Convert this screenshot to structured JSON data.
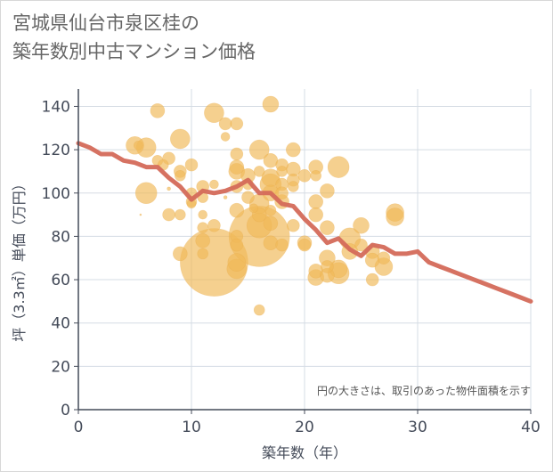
{
  "title_lines": [
    "宮城県仙台市泉区桂の",
    "築年数別中古マンション価格"
  ],
  "chart_data": {
    "type": "scatter",
    "xlabel": "築年数（年）",
    "ylabel": "坪（3.3㎡）単価（万円）",
    "xlim": [
      0,
      40
    ],
    "ylim": [
      0,
      148
    ],
    "xticks": [
      0,
      10,
      20,
      30,
      40
    ],
    "yticks": [
      0,
      20,
      40,
      60,
      80,
      100,
      120,
      140
    ],
    "grid": true,
    "note": "円の大きさは、取引のあった物件面積を示す",
    "colors": {
      "bubble": "#f0b95a",
      "line": "#d46a5a",
      "grid": "#d5dce4",
      "axis": "#444b59"
    },
    "bubbles": [
      {
        "x": 5,
        "y": 122,
        "s": 10
      },
      {
        "x": 5.3,
        "y": 122,
        "s": 5
      },
      {
        "x": 5.5,
        "y": 90,
        "s": 1
      },
      {
        "x": 6,
        "y": 121,
        "s": 11
      },
      {
        "x": 6,
        "y": 100,
        "s": 12
      },
      {
        "x": 7,
        "y": 138,
        "s": 8
      },
      {
        "x": 7,
        "y": 115,
        "s": 6
      },
      {
        "x": 7.5,
        "y": 113,
        "s": 6
      },
      {
        "x": 8,
        "y": 116,
        "s": 7
      },
      {
        "x": 8,
        "y": 90,
        "s": 7
      },
      {
        "x": 8,
        "y": 102,
        "s": 2
      },
      {
        "x": 9,
        "y": 125,
        "s": 11
      },
      {
        "x": 9,
        "y": 110,
        "s": 7
      },
      {
        "x": 9,
        "y": 108,
        "s": 6
      },
      {
        "x": 9,
        "y": 90,
        "s": 6
      },
      {
        "x": 9,
        "y": 72,
        "s": 8
      },
      {
        "x": 10,
        "y": 113,
        "s": 7
      },
      {
        "x": 10,
        "y": 100,
        "s": 6
      },
      {
        "x": 10,
        "y": 95,
        "s": 5
      },
      {
        "x": 10,
        "y": 96,
        "s": 6
      },
      {
        "x": 11,
        "y": 103,
        "s": 7
      },
      {
        "x": 11,
        "y": 98,
        "s": 6
      },
      {
        "x": 11,
        "y": 90,
        "s": 5
      },
      {
        "x": 11,
        "y": 84,
        "s": 6
      },
      {
        "x": 11,
        "y": 78,
        "s": 8
      },
      {
        "x": 11,
        "y": 72,
        "s": 6
      },
      {
        "x": 12,
        "y": 137,
        "s": 11
      },
      {
        "x": 12,
        "y": 104,
        "s": 5
      },
      {
        "x": 12,
        "y": 85,
        "s": 7
      },
      {
        "x": 12,
        "y": 68,
        "s": 38
      },
      {
        "x": 13,
        "y": 132,
        "s": 7
      },
      {
        "x": 13,
        "y": 126,
        "s": 5
      },
      {
        "x": 13,
        "y": 98,
        "s": 2
      },
      {
        "x": 14,
        "y": 132,
        "s": 7
      },
      {
        "x": 14,
        "y": 118,
        "s": 7
      },
      {
        "x": 14,
        "y": 112,
        "s": 8
      },
      {
        "x": 14,
        "y": 110,
        "s": 9
      },
      {
        "x": 14,
        "y": 103,
        "s": 7
      },
      {
        "x": 14,
        "y": 92,
        "s": 8
      },
      {
        "x": 14,
        "y": 80,
        "s": 7
      },
      {
        "x": 14,
        "y": 76,
        "s": 7
      },
      {
        "x": 14,
        "y": 68,
        "s": 10
      },
      {
        "x": 14,
        "y": 65,
        "s": 11
      },
      {
        "x": 15,
        "y": 108,
        "s": 8
      },
      {
        "x": 15,
        "y": 104,
        "s": 6
      },
      {
        "x": 15,
        "y": 98,
        "s": 7
      },
      {
        "x": 15.5,
        "y": 93,
        "s": 5
      },
      {
        "x": 16,
        "y": 120,
        "s": 11
      },
      {
        "x": 16,
        "y": 110,
        "s": 6
      },
      {
        "x": 16,
        "y": 95,
        "s": 11
      },
      {
        "x": 16,
        "y": 90,
        "s": 8
      },
      {
        "x": 16,
        "y": 85,
        "s": 14
      },
      {
        "x": 16,
        "y": 80,
        "s": 34
      },
      {
        "x": 16,
        "y": 46,
        "s": 6
      },
      {
        "x": 17,
        "y": 141,
        "s": 9
      },
      {
        "x": 17,
        "y": 115,
        "s": 8
      },
      {
        "x": 17,
        "y": 107,
        "s": 10
      },
      {
        "x": 17,
        "y": 104,
        "s": 12
      },
      {
        "x": 17,
        "y": 100,
        "s": 9
      },
      {
        "x": 17,
        "y": 92,
        "s": 6
      },
      {
        "x": 17,
        "y": 86,
        "s": 8
      },
      {
        "x": 17,
        "y": 77,
        "s": 8
      },
      {
        "x": 18,
        "y": 113,
        "s": 7
      },
      {
        "x": 18,
        "y": 110,
        "s": 6
      },
      {
        "x": 18,
        "y": 104,
        "s": 7
      },
      {
        "x": 18,
        "y": 100,
        "s": 7
      },
      {
        "x": 18,
        "y": 96,
        "s": 8
      },
      {
        "x": 18,
        "y": 76,
        "s": 7
      },
      {
        "x": 19,
        "y": 120,
        "s": 8
      },
      {
        "x": 19,
        "y": 111,
        "s": 8
      },
      {
        "x": 19,
        "y": 106,
        "s": 7
      },
      {
        "x": 19,
        "y": 103,
        "s": 6
      },
      {
        "x": 19,
        "y": 85,
        "s": 7
      },
      {
        "x": 20,
        "y": 108,
        "s": 7
      },
      {
        "x": 20,
        "y": 77,
        "s": 8
      },
      {
        "x": 20,
        "y": 76,
        "s": 7
      },
      {
        "x": 21,
        "y": 112,
        "s": 8
      },
      {
        "x": 21,
        "y": 108,
        "s": 6
      },
      {
        "x": 21,
        "y": 96,
        "s": 8
      },
      {
        "x": 21,
        "y": 90,
        "s": 8
      },
      {
        "x": 21,
        "y": 64,
        "s": 8
      },
      {
        "x": 21,
        "y": 61,
        "s": 9
      },
      {
        "x": 22,
        "y": 101,
        "s": 8
      },
      {
        "x": 22,
        "y": 84,
        "s": 8
      },
      {
        "x": 22,
        "y": 70,
        "s": 9
      },
      {
        "x": 22,
        "y": 66,
        "s": 7
      },
      {
        "x": 22,
        "y": 62,
        "s": 8
      },
      {
        "x": 23,
        "y": 112,
        "s": 12
      },
      {
        "x": 23,
        "y": 65,
        "s": 10
      },
      {
        "x": 23,
        "y": 63,
        "s": 12
      },
      {
        "x": 24,
        "y": 79,
        "s": 12
      },
      {
        "x": 24,
        "y": 73,
        "s": 9
      },
      {
        "x": 25,
        "y": 85,
        "s": 9
      },
      {
        "x": 25,
        "y": 76,
        "s": 7
      },
      {
        "x": 26,
        "y": 73,
        "s": 8
      },
      {
        "x": 26,
        "y": 69,
        "s": 8
      },
      {
        "x": 26,
        "y": 60,
        "s": 7
      },
      {
        "x": 27,
        "y": 66,
        "s": 10
      },
      {
        "x": 27,
        "y": 70,
        "s": 7
      },
      {
        "x": 28,
        "y": 91,
        "s": 10
      },
      {
        "x": 28,
        "y": 89,
        "s": 10
      }
    ],
    "series": [
      {
        "x": [
          0,
          1,
          2,
          3,
          4,
          5,
          6,
          7,
          8,
          9,
          10,
          11,
          12,
          13,
          14,
          15,
          16,
          17,
          18,
          19,
          20,
          21,
          22,
          23,
          24,
          25,
          26,
          27,
          28,
          29,
          30,
          31,
          32,
          33,
          34,
          35,
          36,
          37,
          38,
          39,
          40
        ],
        "y": [
          123,
          121,
          118,
          118,
          115,
          114,
          112,
          112,
          107,
          103,
          97,
          101,
          100,
          101,
          103,
          106,
          100,
          100,
          95,
          94,
          88,
          83,
          77,
          79,
          74,
          71,
          76,
          75,
          72,
          72,
          73,
          68,
          66,
          64,
          62,
          60,
          58,
          56,
          54,
          52,
          50
        ]
      }
    ]
  }
}
